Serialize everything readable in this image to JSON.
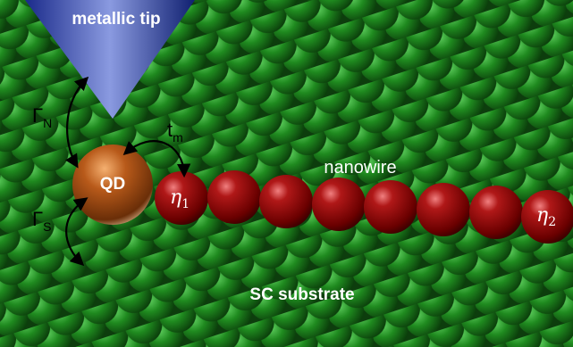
{
  "tip_label": "metallic tip",
  "dot_label": "QD",
  "coupling_tip": {
    "symbol": "Γ",
    "subscript": "N"
  },
  "coupling_substrate": {
    "symbol": "Γ",
    "subscript": "S"
  },
  "hopping": {
    "symbol": "t",
    "subscript": "m"
  },
  "wire_end_1": {
    "symbol": "η",
    "subscript": "1"
  },
  "wire_end_2": {
    "symbol": "η",
    "subscript": "2"
  },
  "wire_label": "nanowire",
  "substrate_label": "SC substrate"
}
